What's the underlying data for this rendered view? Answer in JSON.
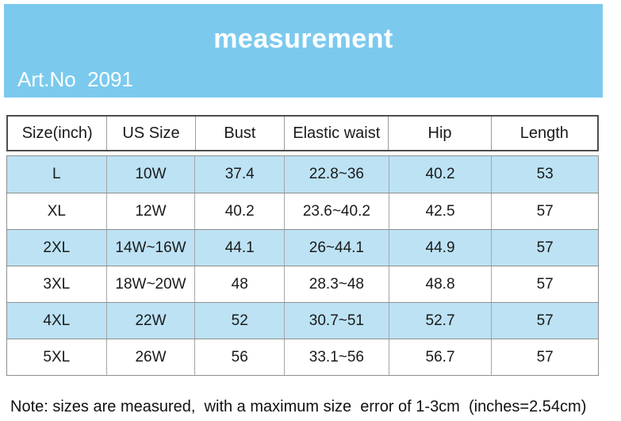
{
  "banner": {
    "title": "measurement",
    "art_no": "Art.No  2091",
    "background_color": "#7BCAEE",
    "text_color": "#FFFFFF"
  },
  "table": {
    "highlight_color": "#BCE2F4",
    "columns": [
      "Size(inch)",
      "US Size",
      "Bust",
      "Elastic waist",
      "Hip",
      "Length"
    ],
    "rows": [
      {
        "highlighted": true,
        "cells": [
          "L",
          "10W",
          "37.4",
          "22.8~36",
          "40.2",
          "53"
        ]
      },
      {
        "highlighted": false,
        "cells": [
          "XL",
          "12W",
          "40.2",
          "23.6~40.2",
          "42.5",
          "57"
        ]
      },
      {
        "highlighted": true,
        "cells": [
          "2XL",
          "14W~16W",
          "44.1",
          "26~44.1",
          "44.9",
          "57"
        ]
      },
      {
        "highlighted": false,
        "cells": [
          "3XL",
          "18W~20W",
          "48",
          "28.3~48",
          "48.8",
          "57"
        ]
      },
      {
        "highlighted": true,
        "cells": [
          "4XL",
          "22W",
          "52",
          "30.7~51",
          "52.7",
          "57"
        ]
      },
      {
        "highlighted": false,
        "cells": [
          "5XL",
          "26W",
          "56",
          "33.1~56",
          "56.7",
          "57"
        ]
      }
    ]
  },
  "note": "Note: sizes are measured,  with a maximum size  error of 1-3cm  (inches=2.54cm)"
}
